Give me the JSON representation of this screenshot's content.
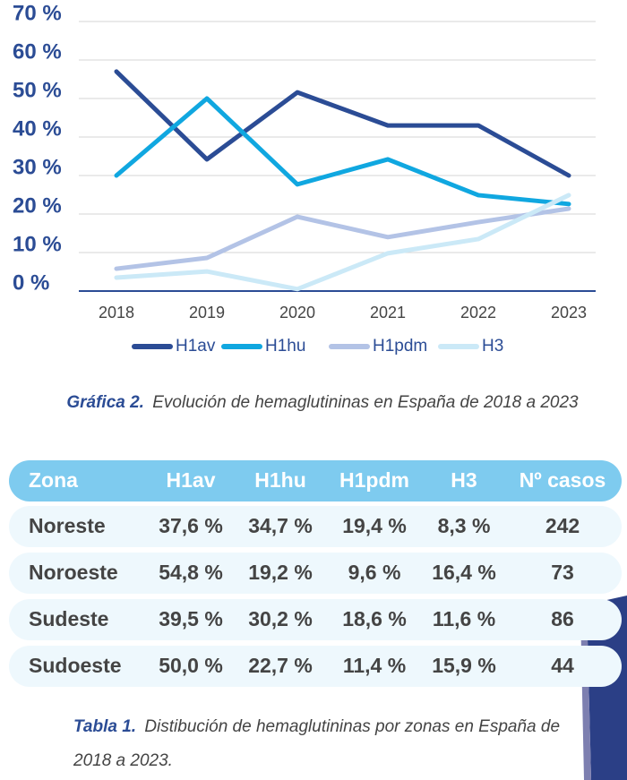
{
  "chart_data": {
    "type": "line",
    "categories": [
      "2018",
      "2019",
      "2020",
      "2021",
      "2022",
      "2023"
    ],
    "series": [
      {
        "name": "H1av",
        "color": "#2b4c95",
        "values": [
          57,
          34.2,
          51.6,
          43,
          43,
          30
        ]
      },
      {
        "name": "H1hu",
        "color": "#10a7e0",
        "values": [
          30,
          50,
          27.7,
          34.2,
          24.9,
          22.6
        ]
      },
      {
        "name": "H1pdm",
        "color": "#b3c3e6",
        "values": [
          5.8,
          8.6,
          19.3,
          14,
          17.9,
          21.4
        ]
      },
      {
        "name": "H3",
        "color": "#cbe9f7",
        "values": [
          3.5,
          5.1,
          0.5,
          9.8,
          13.5,
          24.9
        ]
      }
    ],
    "ylim": [
      0,
      70
    ],
    "yticks": [
      {
        "value": 0,
        "label": "0 %"
      },
      {
        "value": 10,
        "label": "10 %"
      },
      {
        "value": 20,
        "label": "20 %"
      },
      {
        "value": 30,
        "label": "30 %"
      },
      {
        "value": 40,
        "label": "40 %"
      },
      {
        "value": 50,
        "label": "50 %"
      },
      {
        "value": 60,
        "label": "60 %"
      },
      {
        "value": 70,
        "label": "70 %"
      }
    ],
    "grid": true,
    "legend": "bottom"
  },
  "chart_caption": {
    "label": "Gráfica 2.",
    "text": "Evolución de hemaglutininas en España de 2018 a 2023"
  },
  "table": {
    "header": [
      "Zona",
      "H1av",
      "H1hu",
      "H1pdm",
      "H3",
      "Nº casos"
    ],
    "rows": [
      [
        "Noreste",
        "37,6 %",
        "34,7 %",
        "19,4 %",
        "8,3 %",
        "242"
      ],
      [
        "Noroeste",
        "54,8 %",
        "19,2 %",
        "9,6 %",
        "16,4 %",
        "73"
      ],
      [
        "Sudeste",
        "39,5 %",
        "30,2 %",
        "18,6 %",
        "11,6 %",
        "86"
      ],
      [
        "Sudoeste",
        "50,0 %",
        "22,7 %",
        "11,4 %",
        "15,9 %",
        "44"
      ]
    ]
  },
  "table_caption": {
    "label": "Tabla 1.",
    "line1": "Distibución de hemaglutininas por zonas en España de",
    "line2": "2018 a 2023."
  }
}
